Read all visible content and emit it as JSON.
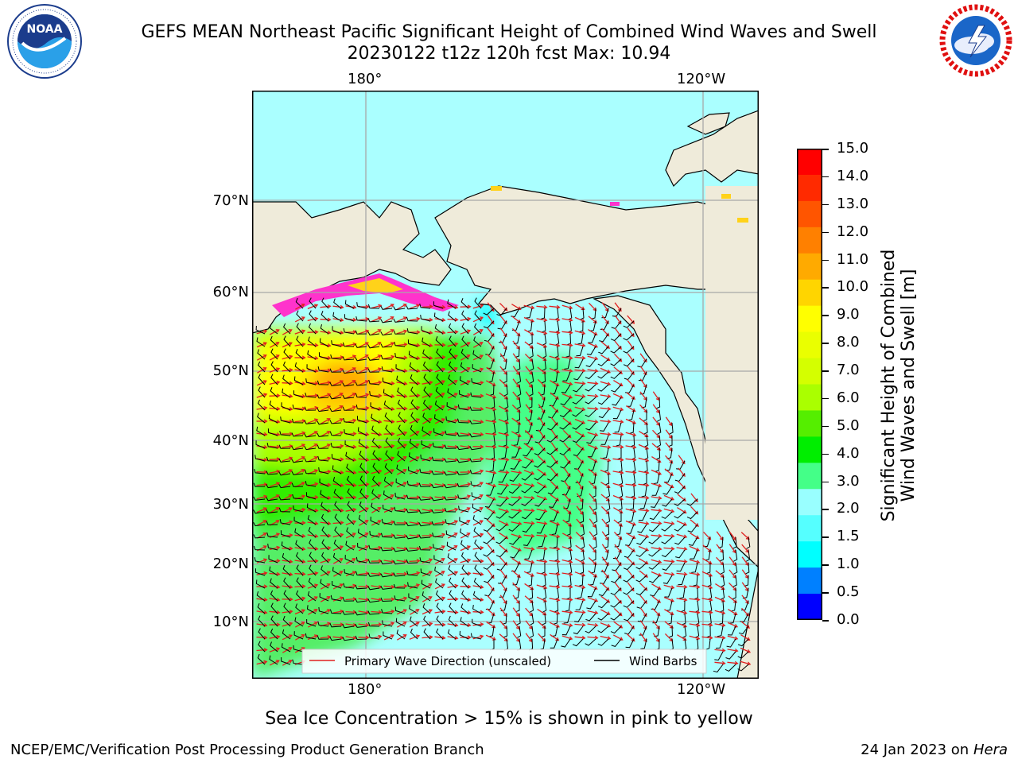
{
  "header": {
    "title_line1": "GEFS MEAN Northeast Pacific Significant Height of Combined Wind Waves and Swell",
    "title_line2": "20230122 t12z 120h fcst   Max: 10.94"
  },
  "logos": {
    "left": {
      "name": "noaa-logo",
      "text": "NOAA"
    },
    "right": {
      "name": "nws-logo",
      "text": "NATIONAL WEATHER SERVICE"
    }
  },
  "map": {
    "top_lon_labels": [
      "180°",
      "120°W"
    ],
    "bottom_lon_labels": [
      "180°",
      "120°W"
    ],
    "lat_labels": [
      "70°N",
      "60°N",
      "50°N",
      "40°N",
      "30°N",
      "20°N",
      "10°N"
    ],
    "legend": {
      "wave_label": "Primary Wave Direction (unscaled)",
      "wind_label": "Wind Barbs",
      "wave_color": "#e02020",
      "wind_color": "#000000"
    },
    "colors": {
      "land": "#efebda",
      "ice": [
        "#ff33cc",
        "#ffd21a"
      ]
    }
  },
  "colorbar": {
    "title_line1": "Significant Height of Combined",
    "title_line2": "Wind Waves and Swell [m]",
    "ticks": [
      "15.0",
      "14.0",
      "13.0",
      "12.0",
      "11.0",
      "10.0",
      "9.0",
      "8.0",
      "7.0",
      "6.0",
      "5.0",
      "4.0",
      "3.0",
      "2.0",
      "1.5",
      "1.0",
      "0.5",
      "0.0"
    ],
    "colors_top_to_bottom": [
      "#ff0000",
      "#ff2a00",
      "#ff5500",
      "#ff8000",
      "#ffaa00",
      "#ffd500",
      "#ffff00",
      "#eaff00",
      "#d4ff00",
      "#aaff00",
      "#55ee00",
      "#00ee00",
      "#44ff88",
      "#99ffff",
      "#55ffff",
      "#00ffff",
      "#0080ff",
      "#0000ff"
    ]
  },
  "footer": {
    "note": "Sea Ice Concentration > 15% is shown in pink to yellow",
    "credit_left": "NCEP/EMC/Verification Post Processing Product Generation Branch",
    "credit_right_date": "24 Jan 2023 on",
    "credit_right_host": "Hera"
  }
}
